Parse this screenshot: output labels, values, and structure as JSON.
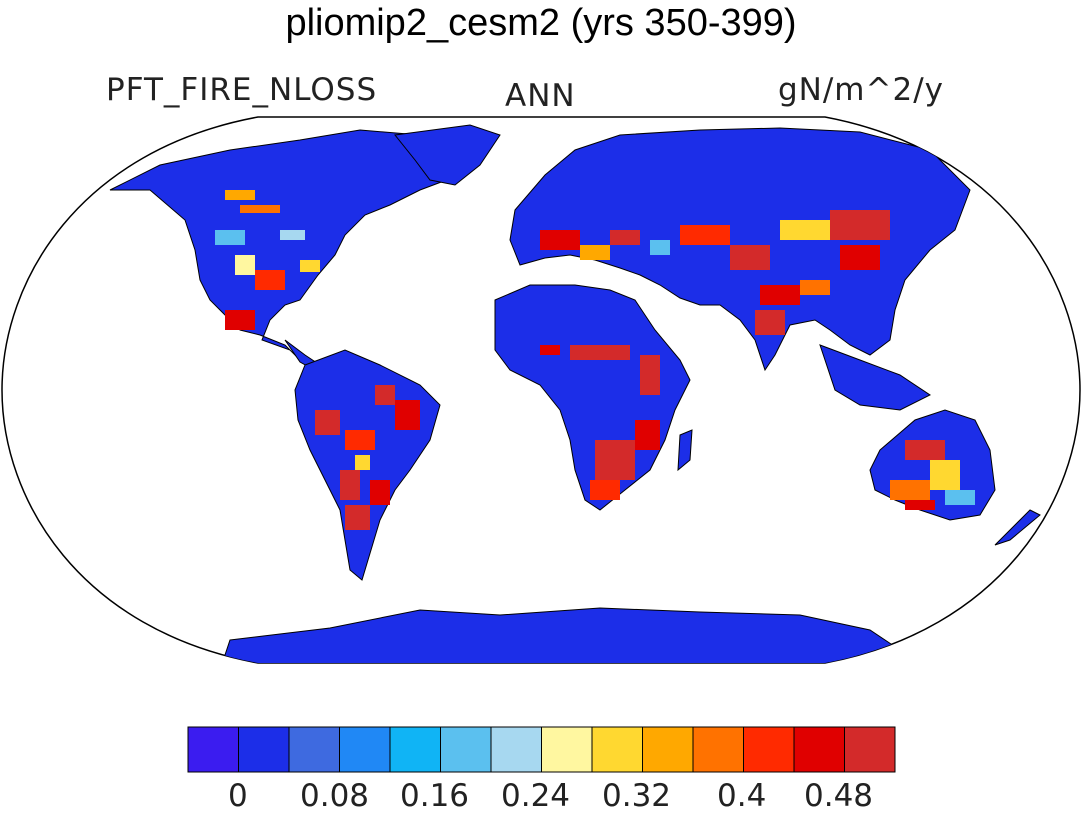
{
  "title": "pliomip2_cesm2 (yrs 350-399)",
  "variable": "PFT_FIRE_NLOSS",
  "season": "ANN",
  "units": "gN/m^2/y",
  "colors": {
    "background_land": "#1c2ee8",
    "coastline": "#000000",
    "ocean": "#ffffff"
  },
  "colorbar": {
    "colors": [
      "#3b1cf0",
      "#1c2ee8",
      "#3e6ae0",
      "#2088f5",
      "#10b4f5",
      "#5bc0ef",
      "#a7d8f0",
      "#fff7a0",
      "#ffd830",
      "#ffa800",
      "#ff7200",
      "#ff2a00",
      "#e00000",
      "#d32a2a"
    ],
    "labels": [
      "0",
      "0.08",
      "0.16",
      "0.24",
      "0.32",
      "0.4",
      "0.48"
    ]
  }
}
